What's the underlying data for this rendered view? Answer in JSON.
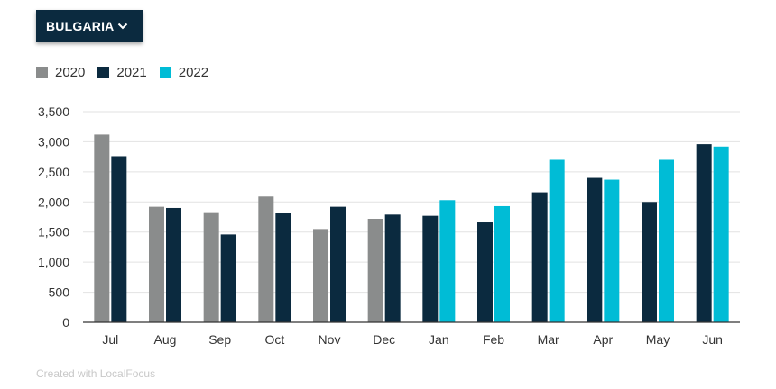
{
  "dropdown": {
    "label": "BULGARIA"
  },
  "colors": {
    "2020": "#8a8c8c",
    "2021": "#0b2a3f",
    "2022": "#00bcd6",
    "grid": "#e2e2e2",
    "axis": "#333333"
  },
  "chart_data": {
    "type": "bar",
    "categories": [
      "Jul",
      "Aug",
      "Sep",
      "Oct",
      "Nov",
      "Dec",
      "Jan",
      "Feb",
      "Mar",
      "Apr",
      "May",
      "Jun"
    ],
    "series": [
      {
        "name": "2020",
        "values": [
          3120,
          1920,
          1830,
          2090,
          1550,
          1720,
          null,
          null,
          null,
          null,
          null,
          null
        ]
      },
      {
        "name": "2021",
        "values": [
          2760,
          1900,
          1460,
          1810,
          1920,
          1790,
          1770,
          1660,
          2160,
          2400,
          2000,
          2960
        ]
      },
      {
        "name": "2022",
        "values": [
          null,
          null,
          null,
          null,
          null,
          null,
          2030,
          1930,
          2700,
          2370,
          2700,
          2920
        ]
      }
    ],
    "y_ticks": [
      "0",
      "500",
      "1,000",
      "1,500",
      "2,000",
      "2,500",
      "3,000",
      "3,500"
    ],
    "ylim": [
      0,
      3500
    ],
    "grid": true,
    "legend": "top-left"
  },
  "footer": {
    "credit": "Created with LocalFocus"
  }
}
